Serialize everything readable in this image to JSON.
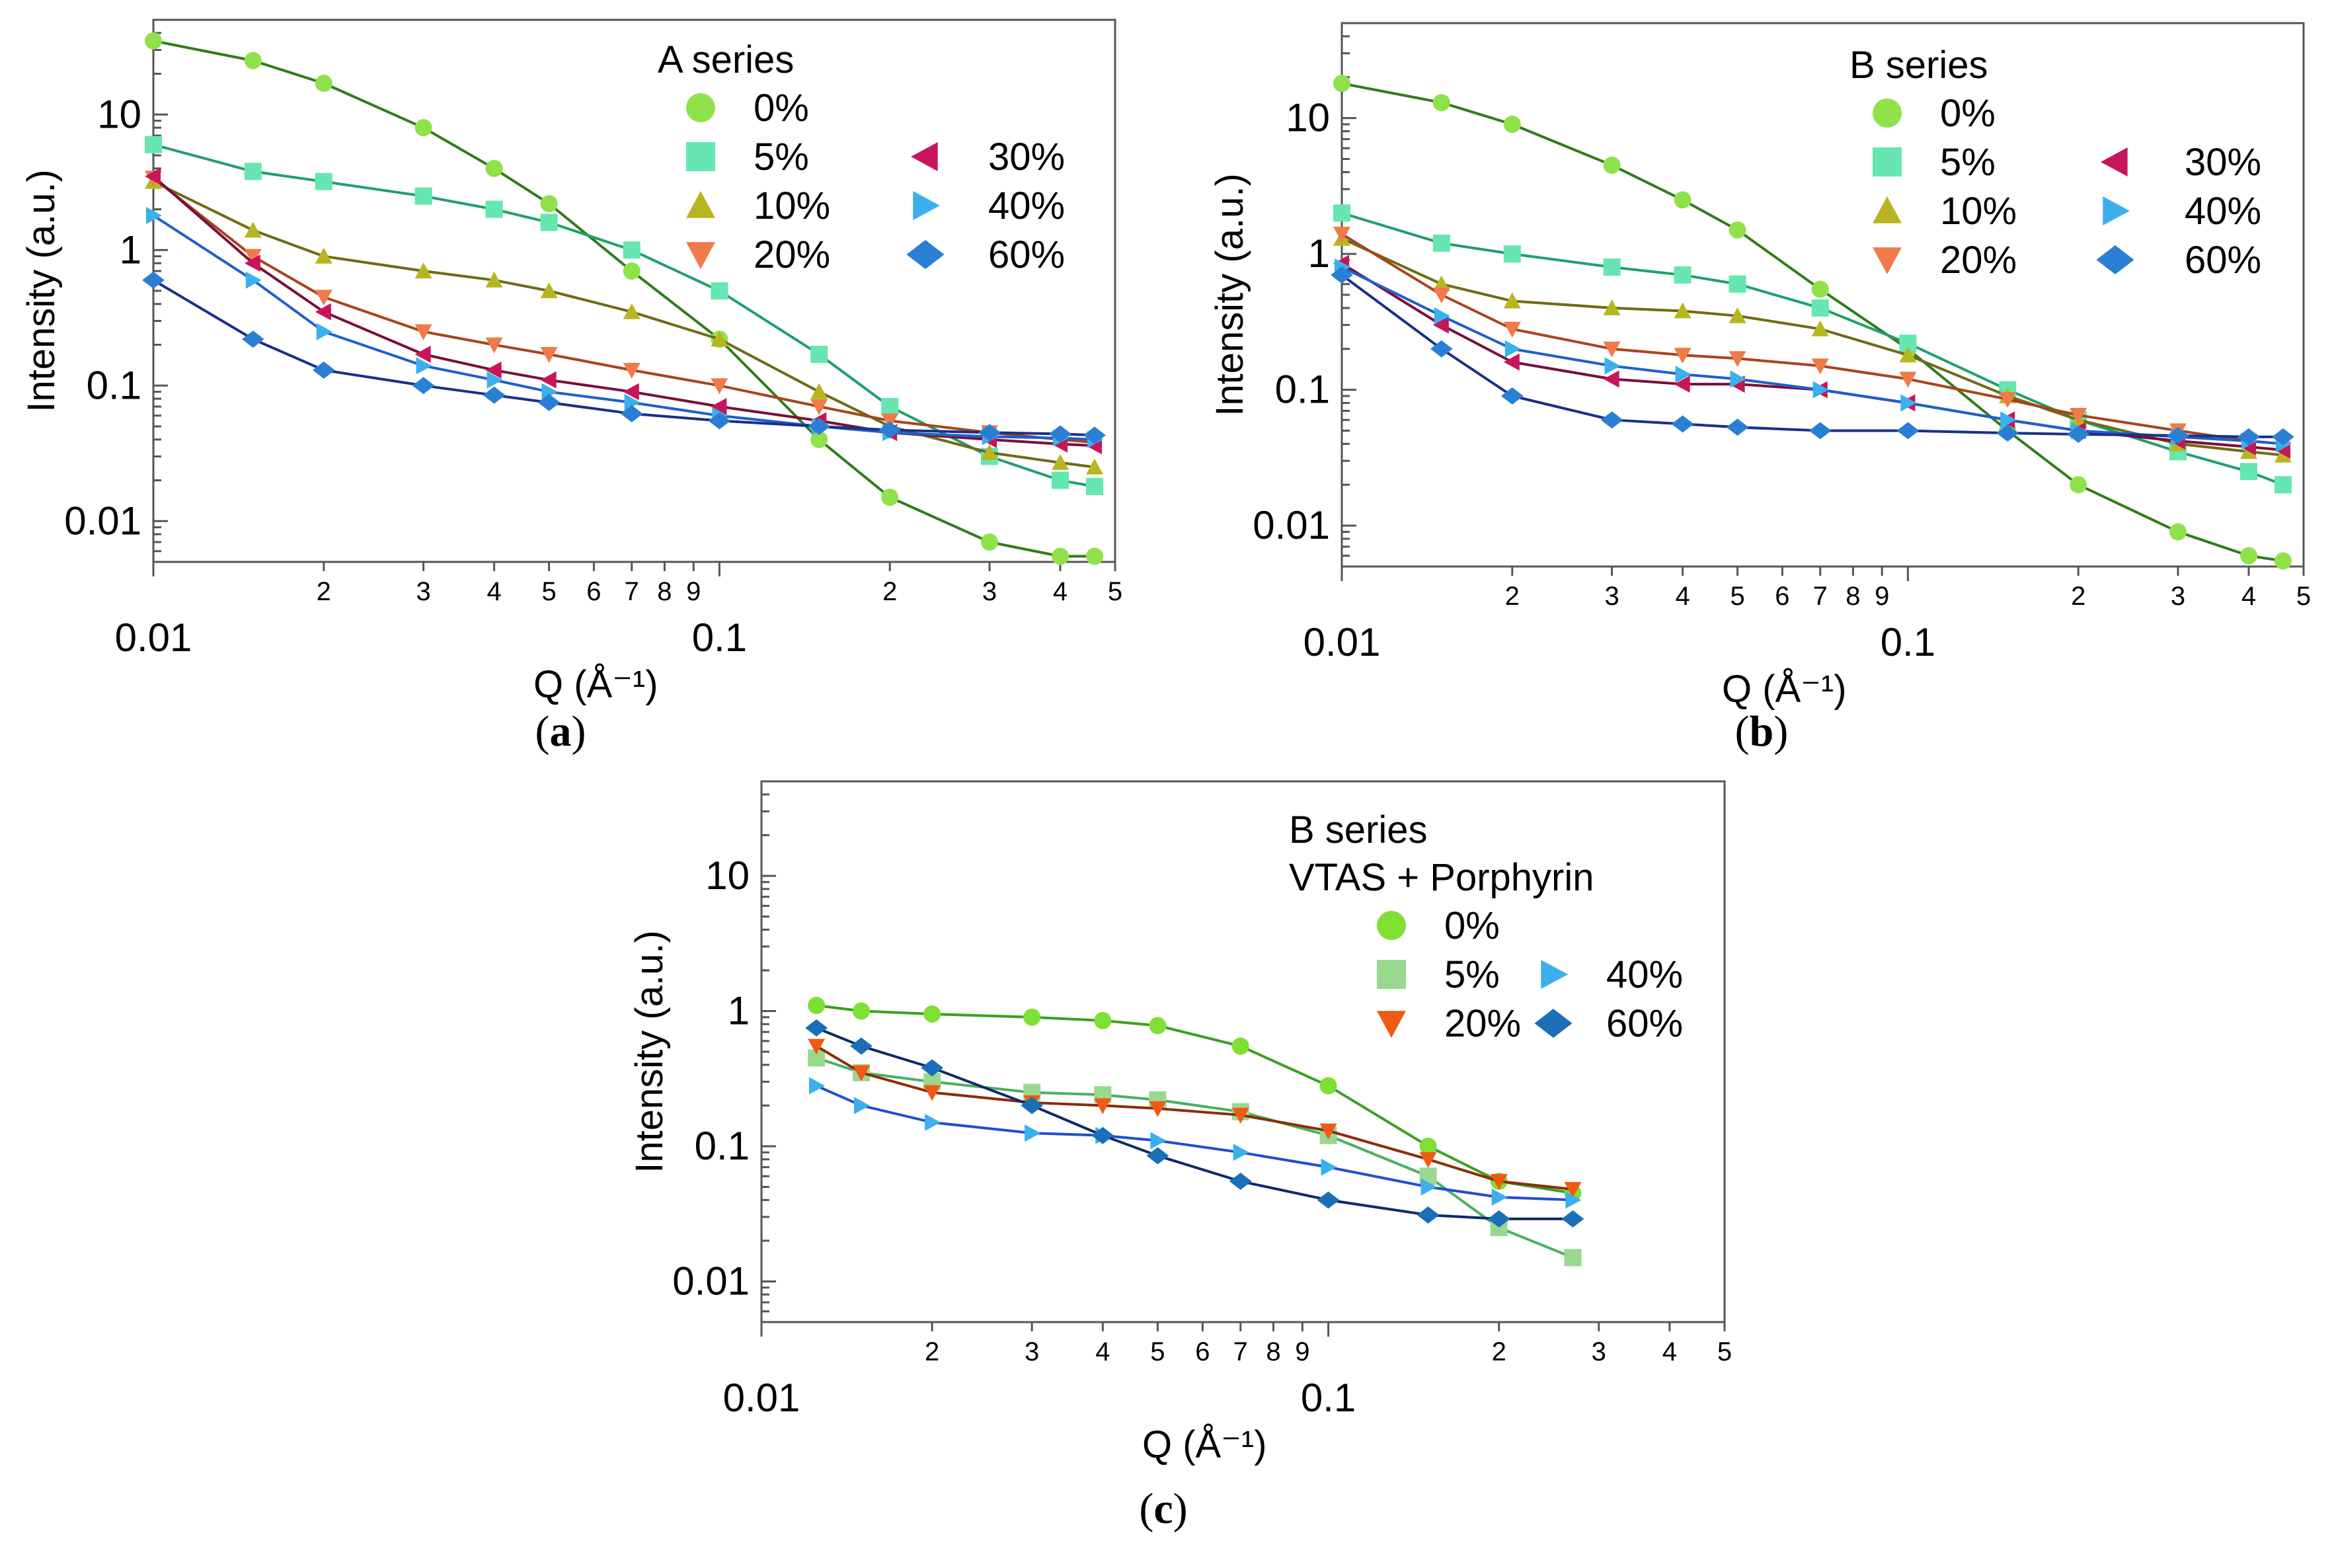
{
  "chart_data": [
    {
      "panel": "a",
      "panel_label": {
        "open": "(",
        "letter": "a",
        "close": ")"
      },
      "type": "scatter",
      "xscale": "log",
      "yscale": "log",
      "xlabel": "Q (Å⁻¹)",
      "ylabel": "Intensity (a.u.)",
      "xlim": [
        0.01,
        0.5
      ],
      "ylim": [
        0.005,
        50
      ],
      "x_major_ticks": [
        "0.01",
        "0.1"
      ],
      "x_minor_ticks": [
        "2",
        "3",
        "4",
        "5",
        "6",
        "7",
        "8",
        "9",
        "2",
        "3",
        "4",
        "5"
      ],
      "y_ticks": [
        "0.01",
        "0.1",
        "1",
        "10"
      ],
      "legend_title": "A series",
      "legend": [
        {
          "label": "0%",
          "marker": "circle",
          "color": "#8fe24a",
          "fit_color": "#2e7d1a"
        },
        {
          "label": "5%",
          "marker": "square",
          "color": "#66e6b0",
          "fit_color": "#1fa06a"
        },
        {
          "label": "10%",
          "marker": "tri-up",
          "color": "#b8b620",
          "fit_color": "#6f6b14"
        },
        {
          "label": "20%",
          "marker": "tri-down",
          "color": "#f07a4a",
          "fit_color": "#a8441e"
        },
        {
          "label": "30%",
          "marker": "tri-left",
          "color": "#c8155a",
          "fit_color": "#7a0f38"
        },
        {
          "label": "40%",
          "marker": "tri-right",
          "color": "#3bb0ec",
          "fit_color": "#1f5fcc"
        },
        {
          "label": "60%",
          "marker": "diamond",
          "color": "#2a7fd4",
          "fit_color": "#1a2f8a"
        }
      ],
      "series": [
        {
          "name": "0%",
          "x": [
            0.01,
            0.015,
            0.02,
            0.03,
            0.04,
            0.05,
            0.07,
            0.1,
            0.15,
            0.2,
            0.3,
            0.4,
            0.46
          ],
          "y": [
            35,
            25,
            17,
            8,
            4,
            2.2,
            0.7,
            0.22,
            0.04,
            0.015,
            0.007,
            0.0055,
            0.0055
          ]
        },
        {
          "name": "5%",
          "x": [
            0.01,
            0.015,
            0.02,
            0.03,
            0.04,
            0.05,
            0.07,
            0.1,
            0.15,
            0.2,
            0.3,
            0.4,
            0.46
          ],
          "y": [
            6,
            3.8,
            3.2,
            2.5,
            2,
            1.6,
            1,
            0.5,
            0.17,
            0.07,
            0.03,
            0.02,
            0.018
          ]
        },
        {
          "name": "10%",
          "x": [
            0.01,
            0.015,
            0.02,
            0.03,
            0.04,
            0.05,
            0.07,
            0.1,
            0.15,
            0.2,
            0.3,
            0.4,
            0.46
          ],
          "y": [
            3.2,
            1.4,
            0.9,
            0.7,
            0.6,
            0.5,
            0.35,
            0.22,
            0.09,
            0.05,
            0.032,
            0.027,
            0.025
          ]
        },
        {
          "name": "20%",
          "x": [
            0.01,
            0.015,
            0.02,
            0.03,
            0.04,
            0.05,
            0.07,
            0.1,
            0.15,
            0.2,
            0.3,
            0.4,
            0.46
          ],
          "y": [
            3.4,
            0.9,
            0.45,
            0.25,
            0.2,
            0.17,
            0.13,
            0.1,
            0.07,
            0.055,
            0.045,
            0.04,
            0.038
          ]
        },
        {
          "name": "30%",
          "x": [
            0.01,
            0.015,
            0.02,
            0.03,
            0.04,
            0.05,
            0.07,
            0.1,
            0.15,
            0.2,
            0.3,
            0.4,
            0.46
          ],
          "y": [
            3.5,
            0.8,
            0.35,
            0.17,
            0.13,
            0.11,
            0.09,
            0.07,
            0.055,
            0.045,
            0.04,
            0.037,
            0.036
          ]
        },
        {
          "name": "40%",
          "x": [
            0.01,
            0.015,
            0.02,
            0.03,
            0.04,
            0.05,
            0.07,
            0.1,
            0.15,
            0.2,
            0.3,
            0.4,
            0.46
          ],
          "y": [
            1.8,
            0.6,
            0.25,
            0.14,
            0.11,
            0.09,
            0.075,
            0.06,
            0.05,
            0.045,
            0.042,
            0.041,
            0.04
          ]
        },
        {
          "name": "60%",
          "x": [
            0.01,
            0.015,
            0.02,
            0.03,
            0.04,
            0.05,
            0.07,
            0.1,
            0.15,
            0.2,
            0.3,
            0.4,
            0.46
          ],
          "y": [
            0.6,
            0.22,
            0.13,
            0.1,
            0.085,
            0.075,
            0.062,
            0.055,
            0.05,
            0.047,
            0.045,
            0.044,
            0.043
          ]
        }
      ]
    },
    {
      "panel": "b",
      "panel_label": {
        "open": "(",
        "letter": "b",
        "close": ")"
      },
      "type": "scatter",
      "xscale": "log",
      "yscale": "log",
      "xlabel": "Q (Å⁻¹)",
      "ylabel": "Intensity (a.u.)",
      "xlim": [
        0.01,
        0.5
      ],
      "ylim": [
        0.005,
        50
      ],
      "x_major_ticks": [
        "0.01",
        "0.1"
      ],
      "x_minor_ticks": [
        "2",
        "3",
        "4",
        "5",
        "6",
        "7",
        "8",
        "9",
        "2",
        "3",
        "4",
        "5"
      ],
      "y_ticks": [
        "0.01",
        "0.1",
        "1",
        "10"
      ],
      "legend_title": "B series",
      "legend": [
        {
          "label": "0%",
          "marker": "circle",
          "color": "#8fe24a",
          "fit_color": "#2e7d1a"
        },
        {
          "label": "5%",
          "marker": "square",
          "color": "#66e6b0",
          "fit_color": "#1fa06a"
        },
        {
          "label": "10%",
          "marker": "tri-up",
          "color": "#b8b620",
          "fit_color": "#6f6b14"
        },
        {
          "label": "20%",
          "marker": "tri-down",
          "color": "#f07a4a",
          "fit_color": "#a8441e"
        },
        {
          "label": "30%",
          "marker": "tri-left",
          "color": "#c8155a",
          "fit_color": "#7a0f38"
        },
        {
          "label": "40%",
          "marker": "tri-right",
          "color": "#3bb0ec",
          "fit_color": "#1f5fcc"
        },
        {
          "label": "60%",
          "marker": "diamond",
          "color": "#2a7fd4",
          "fit_color": "#1a2f8a"
        }
      ],
      "series": [
        {
          "name": "0%",
          "x": [
            0.01,
            0.015,
            0.02,
            0.03,
            0.04,
            0.05,
            0.07,
            0.1,
            0.15,
            0.2,
            0.3,
            0.4,
            0.46
          ],
          "y": [
            18,
            13,
            9,
            4.5,
            2.5,
            1.5,
            0.55,
            0.2,
            0.05,
            0.02,
            0.009,
            0.006,
            0.0055
          ]
        },
        {
          "name": "5%",
          "x": [
            0.01,
            0.015,
            0.02,
            0.03,
            0.04,
            0.05,
            0.07,
            0.1,
            0.15,
            0.2,
            0.3,
            0.4,
            0.46
          ],
          "y": [
            2,
            1.2,
            1,
            0.8,
            0.7,
            0.6,
            0.4,
            0.22,
            0.1,
            0.06,
            0.035,
            0.025,
            0.02
          ]
        },
        {
          "name": "10%",
          "x": [
            0.01,
            0.015,
            0.02,
            0.03,
            0.04,
            0.05,
            0.07,
            0.1,
            0.15,
            0.2,
            0.3,
            0.4,
            0.46
          ],
          "y": [
            1.3,
            0.6,
            0.45,
            0.4,
            0.38,
            0.35,
            0.28,
            0.18,
            0.09,
            0.06,
            0.04,
            0.035,
            0.033
          ]
        },
        {
          "name": "20%",
          "x": [
            0.01,
            0.015,
            0.02,
            0.03,
            0.04,
            0.05,
            0.07,
            0.1,
            0.15,
            0.2,
            0.3,
            0.4,
            0.46
          ],
          "y": [
            1.4,
            0.5,
            0.28,
            0.2,
            0.18,
            0.17,
            0.15,
            0.12,
            0.085,
            0.065,
            0.05,
            0.042,
            0.04
          ]
        },
        {
          "name": "30%",
          "x": [
            0.01,
            0.015,
            0.02,
            0.03,
            0.04,
            0.05,
            0.07,
            0.1,
            0.15,
            0.2,
            0.3,
            0.4,
            0.46
          ],
          "y": [
            0.85,
            0.3,
            0.16,
            0.12,
            0.11,
            0.11,
            0.1,
            0.08,
            0.06,
            0.05,
            0.042,
            0.038,
            0.036
          ]
        },
        {
          "name": "40%",
          "x": [
            0.01,
            0.015,
            0.02,
            0.03,
            0.04,
            0.05,
            0.07,
            0.1,
            0.15,
            0.2,
            0.3,
            0.4,
            0.46
          ],
          "y": [
            0.8,
            0.35,
            0.2,
            0.15,
            0.13,
            0.12,
            0.1,
            0.08,
            0.06,
            0.05,
            0.045,
            0.042,
            0.04
          ]
        },
        {
          "name": "60%",
          "x": [
            0.01,
            0.015,
            0.02,
            0.03,
            0.04,
            0.05,
            0.07,
            0.1,
            0.15,
            0.2,
            0.3,
            0.4,
            0.46
          ],
          "y": [
            0.7,
            0.2,
            0.09,
            0.06,
            0.056,
            0.053,
            0.05,
            0.05,
            0.048,
            0.047,
            0.046,
            0.045,
            0.045
          ]
        }
      ]
    },
    {
      "panel": "c",
      "panel_label": {
        "open": "(",
        "letter": "c",
        "close": ")"
      },
      "type": "scatter",
      "xscale": "log",
      "yscale": "log",
      "xlabel": "Q (Å⁻¹)",
      "ylabel": "Intensity (a.u.)",
      "xlim": [
        0.01,
        0.5
      ],
      "ylim": [
        0.005,
        50
      ],
      "x_major_ticks": [
        "0.01",
        "0.1"
      ],
      "x_minor_ticks": [
        "2",
        "3",
        "4",
        "5",
        "6",
        "7",
        "8",
        "9",
        "2",
        "3",
        "4",
        "5"
      ],
      "y_ticks": [
        "0.01",
        "0.1",
        "1",
        "10"
      ],
      "legend_title": "B series",
      "legend_subtitle": "VTAS + Porphyrin",
      "legend": [
        {
          "label": "0%",
          "marker": "circle",
          "color": "#7ee032",
          "fit_color": "#3aa020"
        },
        {
          "label": "5%",
          "marker": "square",
          "color": "#9ad890",
          "fit_color": "#4ab060"
        },
        {
          "label": "20%",
          "marker": "tri-down",
          "color": "#f05a14",
          "fit_color": "#8a2e0a"
        },
        {
          "label": "40%",
          "marker": "tri-right",
          "color": "#3bb0ec",
          "fit_color": "#1f4fd0"
        },
        {
          "label": "60%",
          "marker": "diamond",
          "color": "#1a6fb8",
          "fit_color": "#0f2a6a"
        }
      ],
      "series": [
        {
          "name": "0%",
          "x": [
            0.0125,
            0.015,
            0.02,
            0.03,
            0.04,
            0.05,
            0.07,
            0.1,
            0.15,
            0.2,
            0.27
          ],
          "y": [
            1.1,
            1.0,
            0.95,
            0.9,
            0.85,
            0.78,
            0.55,
            0.28,
            0.1,
            0.055,
            0.045
          ]
        },
        {
          "name": "5%",
          "x": [
            0.0125,
            0.015,
            0.02,
            0.03,
            0.04,
            0.05,
            0.07,
            0.1,
            0.15,
            0.2,
            0.27
          ],
          "y": [
            0.45,
            0.35,
            0.3,
            0.25,
            0.24,
            0.22,
            0.18,
            0.12,
            0.06,
            0.025,
            0.015
          ]
        },
        {
          "name": "20%",
          "x": [
            0.0125,
            0.015,
            0.02,
            0.03,
            0.04,
            0.05,
            0.07,
            0.1,
            0.15,
            0.2,
            0.27
          ],
          "y": [
            0.55,
            0.35,
            0.25,
            0.21,
            0.2,
            0.19,
            0.17,
            0.13,
            0.08,
            0.055,
            0.048
          ]
        },
        {
          "name": "40%",
          "x": [
            0.0125,
            0.015,
            0.02,
            0.03,
            0.04,
            0.05,
            0.07,
            0.1,
            0.15,
            0.2,
            0.27
          ],
          "y": [
            0.28,
            0.2,
            0.15,
            0.125,
            0.12,
            0.11,
            0.09,
            0.07,
            0.05,
            0.042,
            0.04
          ]
        },
        {
          "name": "60%",
          "x": [
            0.0125,
            0.015,
            0.02,
            0.03,
            0.04,
            0.05,
            0.07,
            0.1,
            0.15,
            0.2,
            0.27
          ],
          "y": [
            0.75,
            0.55,
            0.38,
            0.2,
            0.12,
            0.085,
            0.055,
            0.04,
            0.031,
            0.029,
            0.029
          ]
        }
      ]
    }
  ]
}
